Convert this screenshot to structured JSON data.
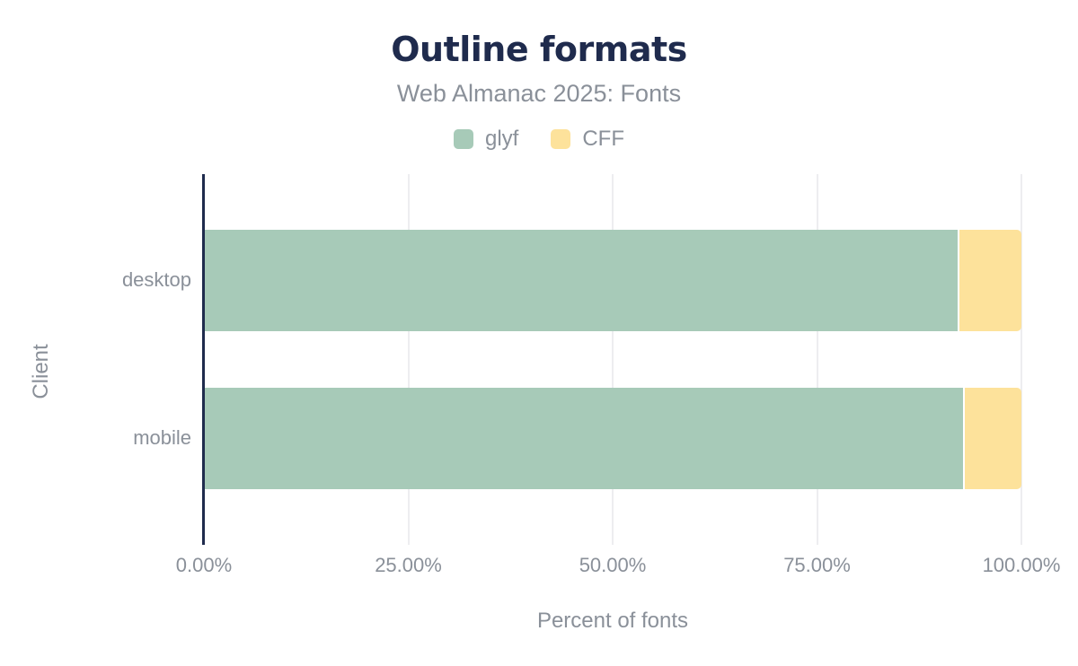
{
  "chart": {
    "title": "Outline formats",
    "subtitle": "Web Almanac 2025: Fonts",
    "xlabel": "Percent of fonts",
    "ylabel": "Client"
  },
  "chart_data": {
    "type": "bar",
    "orientation": "horizontal",
    "stacked": true,
    "title": "Outline formats",
    "subtitle": "Web Almanac 2025: Fonts",
    "xlabel": "Percent of fonts",
    "ylabel": "Client",
    "categories": [
      "desktop",
      "mobile"
    ],
    "series": [
      {
        "name": "glyf",
        "color": "#a7cab8",
        "values": [
          92.2,
          92.9
        ]
      },
      {
        "name": "CFF",
        "color": "#fde29b",
        "values": [
          7.8,
          7.1
        ]
      }
    ],
    "xlim": [
      0,
      100
    ],
    "x_ticks": [
      {
        "label": "0.00%",
        "value": 0
      },
      {
        "label": "25.00%",
        "value": 25
      },
      {
        "label": "50.00%",
        "value": 50
      },
      {
        "label": "75.00%",
        "value": 75
      },
      {
        "label": "100.00%",
        "value": 100
      }
    ],
    "grid": "vertical",
    "legend_position": "top"
  },
  "colors": {
    "title": "#1f2b4d",
    "axis_line": "#1f2b4d",
    "text_secondary": "#8a9099",
    "gridline": "#ededf0",
    "background": "#ffffff"
  }
}
